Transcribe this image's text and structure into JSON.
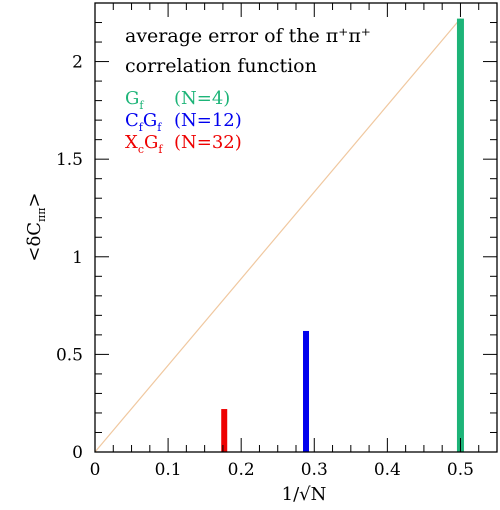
{
  "chart_data": {
    "type": "bar",
    "title_line1": "average error of the π⁺π⁺",
    "title_line2": "correlation function",
    "xlabel": "1/√N",
    "ylabel": "<δC",
    "ylabel_sub": "ππ",
    "ylabel_end": ">",
    "xlim": [
      0,
      0.55
    ],
    "ylim": [
      0,
      2.3
    ],
    "xticks_major": [
      0,
      0.1,
      0.2,
      0.3,
      0.4,
      0.5
    ],
    "xtick_labels": [
      "0",
      "0.1",
      "0.2",
      "0.3",
      "0.4",
      "0.5"
    ],
    "yticks_major": [
      0,
      0.5,
      1,
      1.5,
      2
    ],
    "ytick_labels": [
      "0",
      "0.5",
      "1",
      "1.5",
      "2"
    ],
    "grid": false,
    "legend_position": "top-left",
    "series": [
      {
        "label_main": "G",
        "label_sub": "f",
        "label_rest": "",
        "label_sub2": "",
        "label_n": "(N=4)",
        "color": "#1db478",
        "x": 0.5,
        "value": 2.22
      },
      {
        "label_main": "C",
        "label_sub": "f",
        "label_rest": "G",
        "label_sub2": "f",
        "label_n": "(N=12)",
        "color": "#0000ee",
        "x": 0.2887,
        "value": 0.62
      },
      {
        "label_main": "X",
        "label_sub": "c",
        "label_rest": "G",
        "label_sub2": "f",
        "label_n": "(N=32)",
        "color": "#ee0000",
        "x": 0.1768,
        "value": 0.22
      }
    ],
    "reference_line": {
      "color": "#f0c8a0",
      "from": [
        0,
        0
      ],
      "to": [
        0.5,
        2.22
      ]
    }
  }
}
